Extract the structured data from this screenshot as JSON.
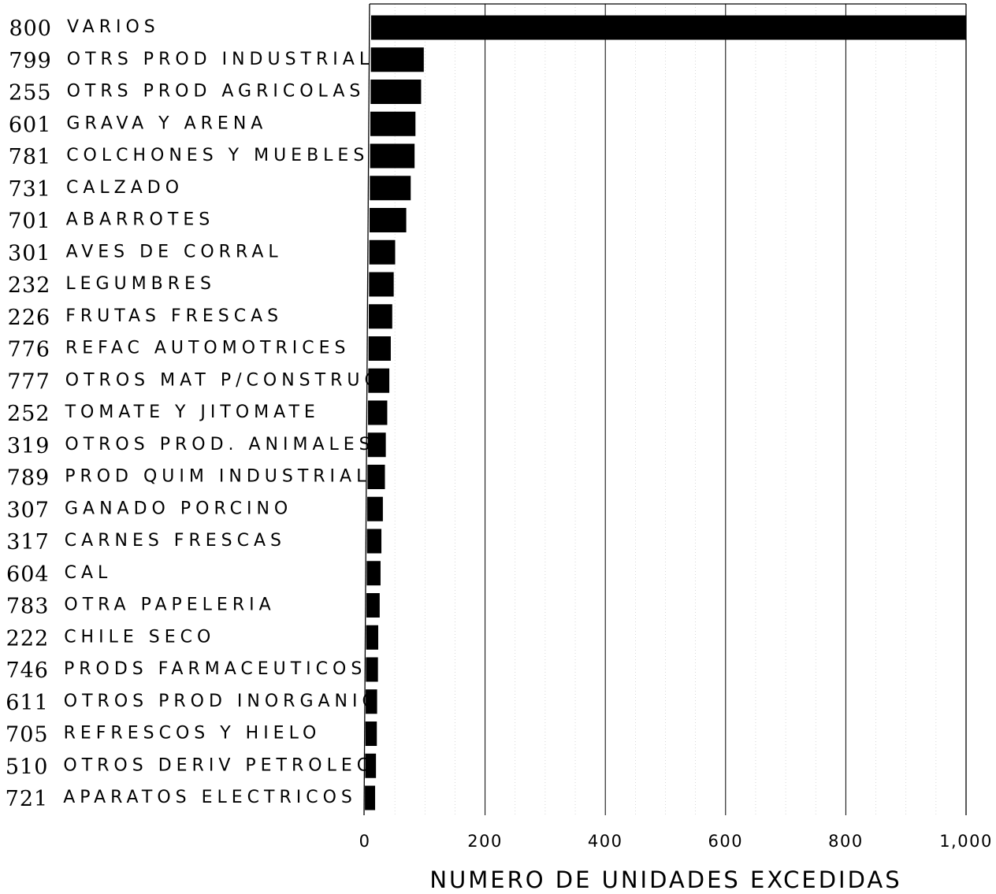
{
  "chart_data": {
    "type": "bar",
    "orientation": "horizontal",
    "xlabel": "NUMERO DE UNIDADES EXCEDIDAS",
    "ylabel": "",
    "title": "",
    "xlim": [
      0,
      1000
    ],
    "x_ticks": [
      0,
      200,
      400,
      600,
      800,
      1000
    ],
    "x_tick_labels": [
      "0",
      "200",
      "400",
      "600",
      "800",
      "1,000"
    ],
    "grid": "vertical major lines at 200-unit intervals, faint minor lines between",
    "bar_color": "#000000",
    "categories": [
      {
        "code": "800",
        "name": "VARIOS"
      },
      {
        "code": "799",
        "name": "OTRS PROD INDUSTRIAL"
      },
      {
        "code": "255",
        "name": "OTRS PROD AGRICOLAS"
      },
      {
        "code": "601",
        "name": "GRAVA Y ARENA"
      },
      {
        "code": "781",
        "name": "COLCHONES Y MUEBLES"
      },
      {
        "code": "731",
        "name": "CALZADO"
      },
      {
        "code": "701",
        "name": "ABARROTES"
      },
      {
        "code": "301",
        "name": "AVES DE CORRAL"
      },
      {
        "code": "232",
        "name": "LEGUMBRES"
      },
      {
        "code": "226",
        "name": "FRUTAS FRESCAS"
      },
      {
        "code": "776",
        "name": "REFAC AUTOMOTRICES"
      },
      {
        "code": "777",
        "name": "OTROS MAT P/CONSTRUC"
      },
      {
        "code": "252",
        "name": "TOMATE Y JITOMATE"
      },
      {
        "code": "319",
        "name": "OTROS PROD. ANIMALES"
      },
      {
        "code": "789",
        "name": "PROD QUIM INDUSTRIAL"
      },
      {
        "code": "307",
        "name": "GANADO PORCINO"
      },
      {
        "code": "317",
        "name": "CARNES FRESCAS"
      },
      {
        "code": "604",
        "name": "CAL"
      },
      {
        "code": "783",
        "name": "OTRA PAPELERIA"
      },
      {
        "code": "222",
        "name": "CHILE SECO"
      },
      {
        "code": "746",
        "name": "PRODS FARMACEUTICOS"
      },
      {
        "code": "611",
        "name": "OTROS PROD INORGANIC"
      },
      {
        "code": "705",
        "name": "REFRESCOS Y HIELO"
      },
      {
        "code": "510",
        "name": "OTROS DERIV PETROLEO"
      },
      {
        "code": "721",
        "name": "APARATOS ELECTRICOS"
      }
    ],
    "values": [
      990,
      88,
      84,
      75,
      74,
      68,
      61,
      43,
      41,
      39,
      37,
      35,
      32,
      30,
      29,
      26,
      24,
      23,
      22,
      20,
      20,
      19,
      19,
      18,
      17
    ]
  }
}
